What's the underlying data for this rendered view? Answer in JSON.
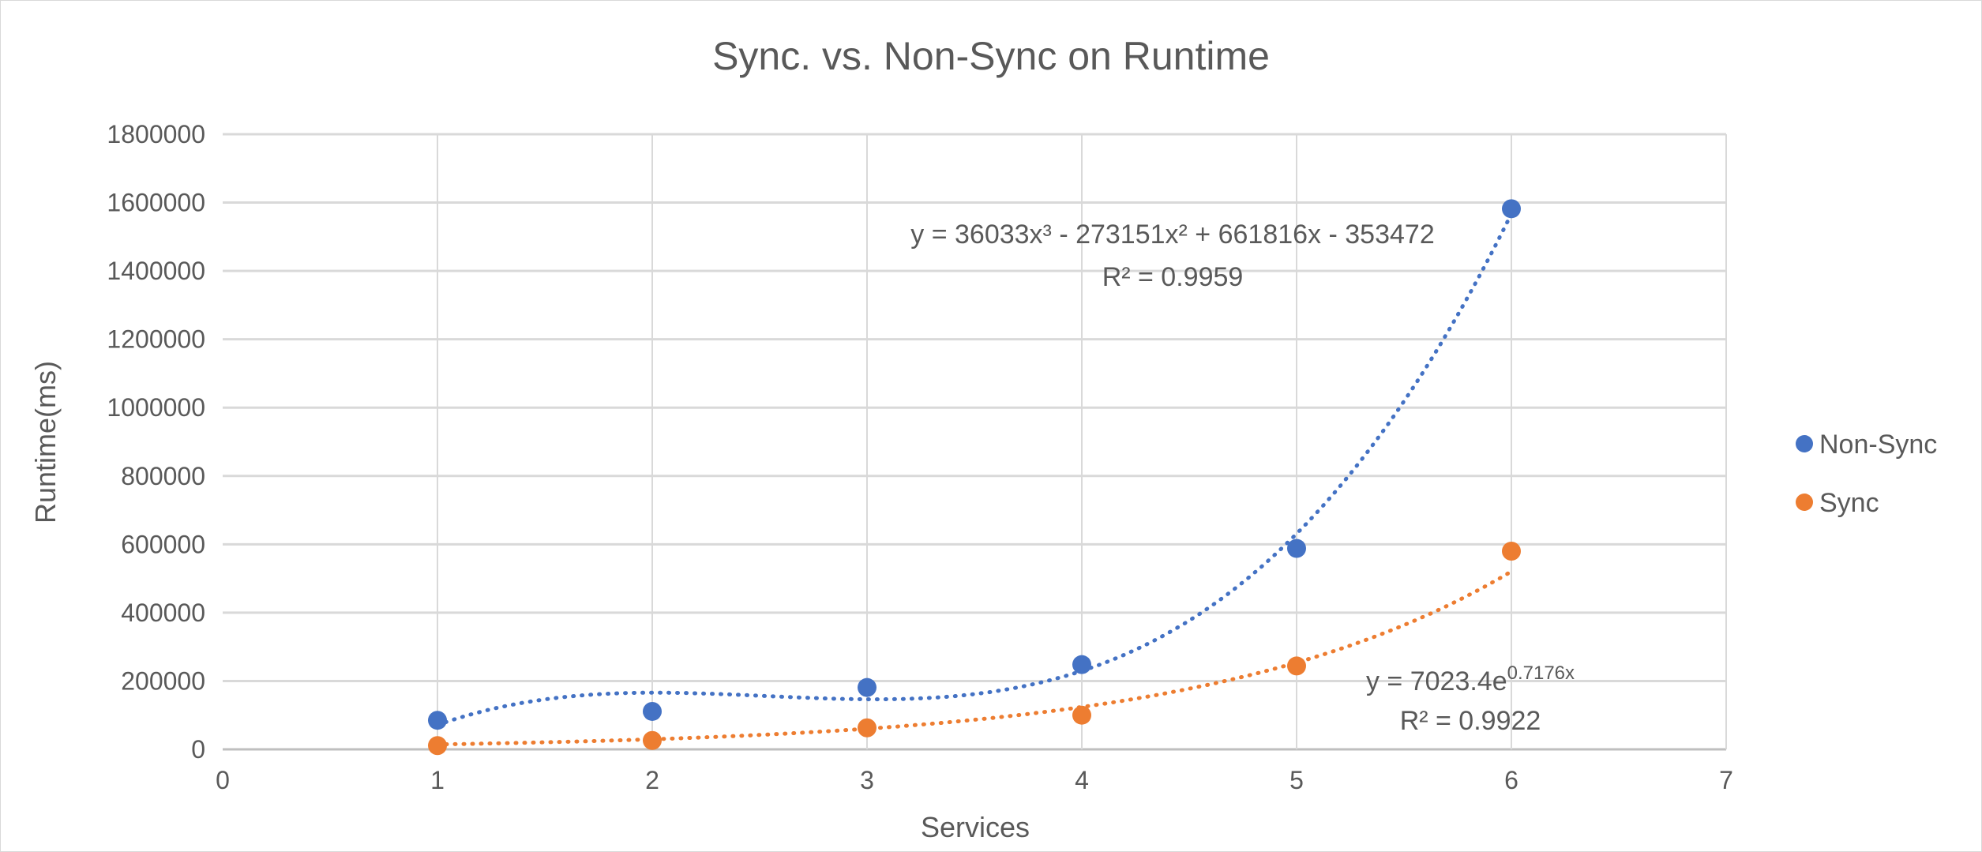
{
  "chart_data": {
    "type": "scatter",
    "title": "Sync. vs. Non-Sync on  Runtime",
    "xlabel": "Services",
    "ylabel": "Runtime(ms)",
    "xlim": [
      0,
      7
    ],
    "ylim": [
      0,
      1800000
    ],
    "xticks": [
      "0",
      "1",
      "2",
      "3",
      "4",
      "5",
      "6",
      "7"
    ],
    "yticks": [
      "0",
      "200000",
      "400000",
      "600000",
      "800000",
      "1000000",
      "1200000",
      "1400000",
      "1600000",
      "1800000"
    ],
    "grid": true,
    "legend_position": "right",
    "series": [
      {
        "name": "Non-Sync",
        "color": "#4472C4",
        "x": [
          1,
          2,
          3,
          4,
          5,
          6
        ],
        "y": [
          85000,
          111000,
          181000,
          248000,
          588000,
          1582000
        ],
        "trendline": {
          "type": "polynomial",
          "coefficients": [
            36033,
            -273151,
            661816,
            -353472
          ],
          "equation": "y = 36033x³ - 273151x² + 661816x - 353472",
          "r2": "R² = 0.9959"
        }
      },
      {
        "name": "Sync",
        "color": "#ED7D31",
        "x": [
          1,
          2,
          3,
          4,
          5,
          6
        ],
        "y": [
          11000,
          26000,
          63000,
          100000,
          244000,
          580000
        ],
        "trendline": {
          "type": "exponential",
          "a": 7023.4,
          "b": 0.7176,
          "equation_base": "y = 7023.4e",
          "equation_exp": "0.7176x",
          "r2": "R² = 0.9922"
        }
      }
    ]
  }
}
